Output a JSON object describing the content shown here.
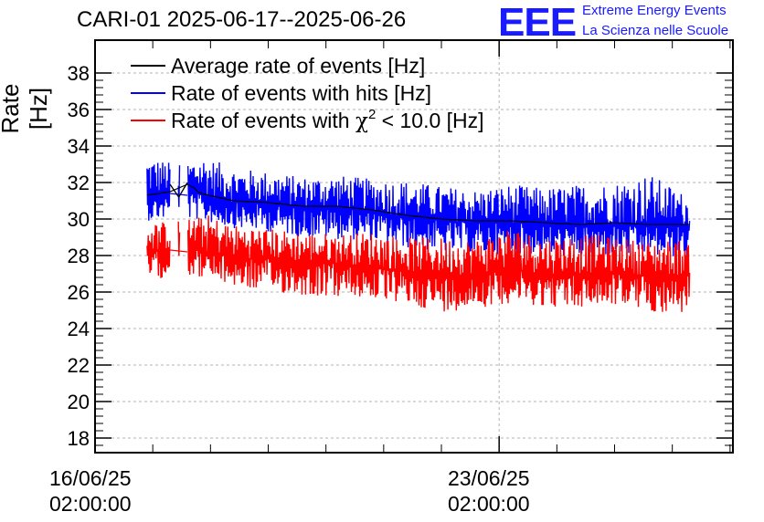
{
  "chart_data": {
    "type": "line",
    "title": "CARI-01 2025-06-17--2025-06-26",
    "ylabel": "Rate [Hz]",
    "xlabel": "",
    "ylim": [
      17.2,
      39.8
    ],
    "yticks": [
      18,
      20,
      22,
      24,
      26,
      28,
      30,
      32,
      34,
      36,
      38
    ],
    "xlim_days": [
      0,
      11.05
    ],
    "xticks": [
      {
        "day": 0,
        "line1": "16/06/25",
        "line2": "02:00:00"
      },
      {
        "day": 7,
        "line1": "23/06/25",
        "line2": "02:00:00"
      }
    ],
    "grid": true,
    "legend_position": "top-left",
    "legend": [
      {
        "label": "Average rate of events [Hz]",
        "color": "#000000"
      },
      {
        "label": "Rate of events with hits [Hz]",
        "color": "#0000ff"
      },
      {
        "label_prefix": "Rate of events with ",
        "label_symbol": "χ",
        "label_sup": "2",
        "label_suffix": " < 10.0 [Hz]",
        "color": "#ff0000"
      }
    ],
    "series": [
      {
        "name": "Rate of events with hits [Hz]",
        "color": "#0000ff",
        "x_days": [
          0.9,
          1.3,
          1.6,
          1.72,
          1.78,
          1.84,
          2.4,
          3.0,
          3.6,
          4.2,
          4.8,
          5.4,
          6.0,
          6.6,
          7.2,
          7.8,
          8.4,
          9.0,
          9.6,
          10.2,
          10.3
        ],
        "values": [
          31.2,
          31.4,
          31.3,
          31.6,
          31.4,
          31.3,
          30.9,
          30.8,
          30.6,
          30.6,
          30.4,
          30.1,
          29.9,
          29.8,
          29.8,
          29.7,
          29.6,
          29.7,
          29.6,
          29.6,
          29.6
        ],
        "min_envelope": [
          29.9,
          30.0,
          29.8,
          30.1,
          29.9,
          29.9,
          29.5,
          29.3,
          29.0,
          28.9,
          28.8,
          28.4,
          28.2,
          28.0,
          28.1,
          28.0,
          27.9,
          28.0,
          27.9,
          27.9,
          27.9
        ],
        "max_envelope": [
          33.5,
          33.1,
          33.2,
          33.3,
          33.4,
          33.5,
          32.8,
          32.6,
          32.3,
          32.4,
          32.2,
          32.1,
          31.8,
          31.6,
          31.9,
          31.7,
          31.9,
          32.0,
          32.5,
          31.4,
          31.0
        ]
      },
      {
        "name": "Rate of events with χ2 < 10.0 [Hz]",
        "color": "#ff0000",
        "x_days": [
          0.9,
          1.3,
          1.6,
          1.72,
          1.78,
          1.84,
          2.4,
          3.0,
          3.6,
          4.2,
          4.8,
          5.4,
          6.0,
          6.6,
          7.2,
          7.8,
          8.4,
          9.0,
          9.6,
          10.2,
          10.3
        ],
        "values": [
          28.2,
          28.3,
          28.2,
          28.5,
          28.3,
          28.2,
          27.9,
          27.8,
          27.6,
          27.6,
          27.4,
          27.1,
          26.9,
          27.0,
          27.2,
          27.0,
          27.0,
          27.1,
          26.9,
          26.9,
          27.0
        ],
        "min_envelope": [
          26.7,
          26.8,
          26.7,
          27.0,
          26.8,
          26.8,
          26.3,
          26.0,
          25.8,
          25.7,
          25.6,
          25.3,
          24.9,
          25.1,
          25.4,
          25.2,
          25.1,
          25.3,
          24.9,
          24.8,
          25.4
        ],
        "max_envelope": [
          29.8,
          29.9,
          30.0,
          30.2,
          30.0,
          30.4,
          29.7,
          29.5,
          29.3,
          29.2,
          29.3,
          29.0,
          29.0,
          28.9,
          29.6,
          29.0,
          29.2,
          29.0,
          28.8,
          28.9,
          28.5
        ]
      },
      {
        "name": "Average rate of events [Hz]",
        "color": "#000000",
        "x_days": [
          0.9,
          1.3,
          1.6,
          1.72,
          1.78,
          1.84,
          2.4,
          3.0,
          3.6,
          4.2,
          4.8,
          5.4,
          6.0,
          6.6,
          7.2,
          7.8,
          8.4,
          9.0,
          9.6,
          10.2,
          10.3
        ],
        "values": [
          31.3,
          31.5,
          31.9,
          31.7,
          31.5,
          31.4,
          31.0,
          30.9,
          30.7,
          30.7,
          30.5,
          30.2,
          30.0,
          29.9,
          29.9,
          29.8,
          29.7,
          29.8,
          29.7,
          29.7,
          29.7
        ]
      }
    ]
  },
  "header": {
    "title": "CARI-01 2025-06-17--2025-06-26",
    "logo_text": "EEE",
    "org_line1": "Extreme Energy Events",
    "org_line2": "La Scienza nelle Scuole"
  }
}
